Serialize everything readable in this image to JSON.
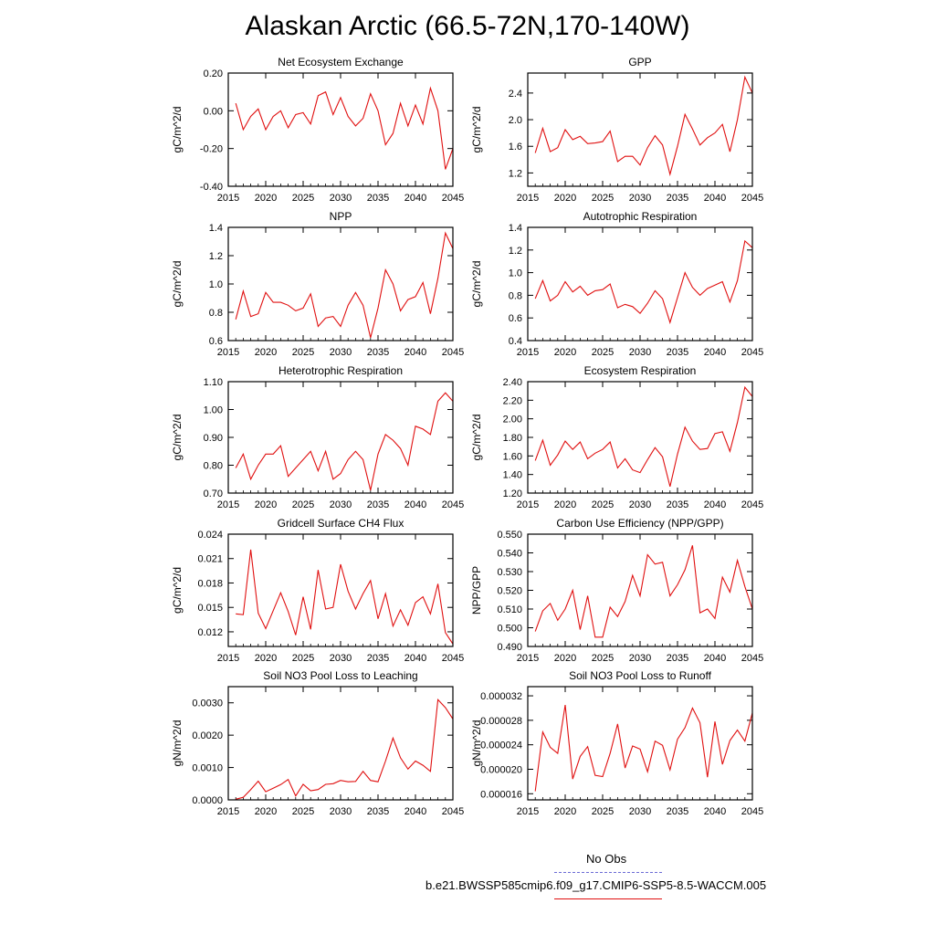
{
  "title": "Alaskan Arctic (66.5-72N,170-140W)",
  "legend": {
    "obs_label": "No Obs",
    "obs_color": "#6b6bd6",
    "model_label": "b.e21.BWSSP585cmip6.f09_g17.CMIP6-SSP5-8.5-WACCM.005",
    "model_color": "#e01010"
  },
  "chart_data": [
    {
      "type": "line",
      "title": "Net Ecosystem Exchange",
      "ylabel": "gC/m^2/d",
      "xlim": [
        2015,
        2045
      ],
      "ylim": [
        -0.4,
        0.2
      ],
      "xticks": [
        2015,
        2020,
        2025,
        2030,
        2035,
        2040,
        2045
      ],
      "yticks": [
        -0.4,
        -0.2,
        0.0,
        0.2
      ],
      "ytick_labels": [
        "-0.40",
        "-0.20",
        "0.00",
        "0.20"
      ],
      "x": [
        2016,
        2017,
        2018,
        2019,
        2020,
        2021,
        2022,
        2023,
        2024,
        2025,
        2026,
        2027,
        2028,
        2029,
        2030,
        2031,
        2032,
        2033,
        2034,
        2035,
        2036,
        2037,
        2038,
        2039,
        2040,
        2041,
        2042,
        2043,
        2044,
        2045
      ],
      "values": [
        0.04,
        -0.1,
        -0.03,
        0.01,
        -0.1,
        -0.03,
        0.0,
        -0.09,
        -0.02,
        -0.01,
        -0.07,
        0.08,
        0.1,
        -0.02,
        0.07,
        -0.03,
        -0.08,
        -0.04,
        0.09,
        0.0,
        -0.18,
        -0.12,
        0.04,
        -0.08,
        0.03,
        -0.07,
        0.12,
        0.0,
        -0.31,
        -0.2
      ]
    },
    {
      "type": "line",
      "title": "GPP",
      "ylabel": "gC/m^2/d",
      "xlim": [
        2015,
        2045
      ],
      "ylim": [
        1.0,
        2.7
      ],
      "xticks": [
        2015,
        2020,
        2025,
        2030,
        2035,
        2040,
        2045
      ],
      "yticks": [
        1.2,
        1.6,
        2.0,
        2.4
      ],
      "ytick_labels": [
        "1.2",
        "1.6",
        "2.0",
        "2.4"
      ],
      "x": [
        2016,
        2017,
        2018,
        2019,
        2020,
        2021,
        2022,
        2023,
        2024,
        2025,
        2026,
        2027,
        2028,
        2029,
        2030,
        2031,
        2032,
        2033,
        2034,
        2035,
        2036,
        2037,
        2038,
        2039,
        2040,
        2041,
        2042,
        2043,
        2044,
        2045
      ],
      "values": [
        1.5,
        1.87,
        1.52,
        1.58,
        1.85,
        1.7,
        1.75,
        1.64,
        1.65,
        1.67,
        1.83,
        1.37,
        1.45,
        1.45,
        1.32,
        1.58,
        1.76,
        1.62,
        1.18,
        1.6,
        2.08,
        1.86,
        1.62,
        1.73,
        1.8,
        1.93,
        1.52,
        2.0,
        2.64,
        2.4
      ]
    },
    {
      "type": "line",
      "title": "NPP",
      "ylabel": "gC/m^2/d",
      "xlim": [
        2015,
        2045
      ],
      "ylim": [
        0.6,
        1.4
      ],
      "xticks": [
        2015,
        2020,
        2025,
        2030,
        2035,
        2040,
        2045
      ],
      "yticks": [
        0.6,
        0.8,
        1.0,
        1.2,
        1.4
      ],
      "ytick_labels": [
        "0.6",
        "0.8",
        "1.0",
        "1.2",
        "1.4"
      ],
      "x": [
        2016,
        2017,
        2018,
        2019,
        2020,
        2021,
        2022,
        2023,
        2024,
        2025,
        2026,
        2027,
        2028,
        2029,
        2030,
        2031,
        2032,
        2033,
        2034,
        2035,
        2036,
        2037,
        2038,
        2039,
        2040,
        2041,
        2042,
        2043,
        2044,
        2045
      ],
      "values": [
        0.75,
        0.95,
        0.77,
        0.79,
        0.94,
        0.87,
        0.87,
        0.85,
        0.81,
        0.83,
        0.93,
        0.7,
        0.76,
        0.77,
        0.7,
        0.85,
        0.94,
        0.85,
        0.62,
        0.83,
        1.1,
        1.0,
        0.81,
        0.89,
        0.91,
        1.01,
        0.79,
        1.04,
        1.36,
        1.25
      ]
    },
    {
      "type": "line",
      "title": "Autotrophic Respiration",
      "ylabel": "gC/m^2/d",
      "xlim": [
        2015,
        2045
      ],
      "ylim": [
        0.4,
        1.4
      ],
      "xticks": [
        2015,
        2020,
        2025,
        2030,
        2035,
        2040,
        2045
      ],
      "yticks": [
        0.4,
        0.6,
        0.8,
        1.0,
        1.2,
        1.4
      ],
      "ytick_labels": [
        "0.4",
        "0.6",
        "0.8",
        "1.0",
        "1.2",
        "1.4"
      ],
      "x": [
        2016,
        2017,
        2018,
        2019,
        2020,
        2021,
        2022,
        2023,
        2024,
        2025,
        2026,
        2027,
        2028,
        2029,
        2030,
        2031,
        2032,
        2033,
        2034,
        2035,
        2036,
        2037,
        2038,
        2039,
        2040,
        2041,
        2042,
        2043,
        2044,
        2045
      ],
      "values": [
        0.77,
        0.93,
        0.75,
        0.8,
        0.92,
        0.83,
        0.88,
        0.8,
        0.84,
        0.85,
        0.9,
        0.69,
        0.72,
        0.7,
        0.64,
        0.73,
        0.84,
        0.77,
        0.56,
        0.78,
        1.0,
        0.87,
        0.8,
        0.86,
        0.89,
        0.92,
        0.74,
        0.93,
        1.28,
        1.22
      ]
    },
    {
      "type": "line",
      "title": "Heterotrophic Respiration",
      "ylabel": "gC/m^2/d",
      "xlim": [
        2015,
        2045
      ],
      "ylim": [
        0.7,
        1.1
      ],
      "xticks": [
        2015,
        2020,
        2025,
        2030,
        2035,
        2040,
        2045
      ],
      "yticks": [
        0.7,
        0.8,
        0.9,
        1.0,
        1.1
      ],
      "ytick_labels": [
        "0.70",
        "0.80",
        "0.90",
        "1.00",
        "1.10"
      ],
      "x": [
        2016,
        2017,
        2018,
        2019,
        2020,
        2021,
        2022,
        2023,
        2024,
        2025,
        2026,
        2027,
        2028,
        2029,
        2030,
        2031,
        2032,
        2033,
        2034,
        2035,
        2036,
        2037,
        2038,
        2039,
        2040,
        2041,
        2042,
        2043,
        2044,
        2045
      ],
      "values": [
        0.79,
        0.84,
        0.75,
        0.8,
        0.84,
        0.84,
        0.87,
        0.76,
        0.79,
        0.82,
        0.85,
        0.78,
        0.85,
        0.75,
        0.77,
        0.82,
        0.85,
        0.82,
        0.71,
        0.84,
        0.91,
        0.89,
        0.86,
        0.8,
        0.94,
        0.93,
        0.91,
        1.03,
        1.06,
        1.03
      ]
    },
    {
      "type": "line",
      "title": "Ecosystem Respiration",
      "ylabel": "gC/m^2/d",
      "xlim": [
        2015,
        2045
      ],
      "ylim": [
        1.2,
        2.4
      ],
      "xticks": [
        2015,
        2020,
        2025,
        2030,
        2035,
        2040,
        2045
      ],
      "yticks": [
        1.2,
        1.4,
        1.6,
        1.8,
        2.0,
        2.2,
        2.4
      ],
      "ytick_labels": [
        "1.20",
        "1.40",
        "1.60",
        "1.80",
        "2.00",
        "2.20",
        "2.40"
      ],
      "x": [
        2016,
        2017,
        2018,
        2019,
        2020,
        2021,
        2022,
        2023,
        2024,
        2025,
        2026,
        2027,
        2028,
        2029,
        2030,
        2031,
        2032,
        2033,
        2034,
        2035,
        2036,
        2037,
        2038,
        2039,
        2040,
        2041,
        2042,
        2043,
        2044,
        2045
      ],
      "values": [
        1.55,
        1.77,
        1.5,
        1.61,
        1.76,
        1.67,
        1.75,
        1.57,
        1.63,
        1.67,
        1.75,
        1.47,
        1.57,
        1.45,
        1.42,
        1.56,
        1.69,
        1.59,
        1.27,
        1.62,
        1.91,
        1.76,
        1.67,
        1.68,
        1.84,
        1.86,
        1.65,
        1.96,
        2.34,
        2.24
      ]
    },
    {
      "type": "line",
      "title": "Gridcell Surface CH4 Flux",
      "ylabel": "gC/m^2/d",
      "xlim": [
        2015,
        2045
      ],
      "ylim": [
        0.0102,
        0.024
      ],
      "xticks": [
        2015,
        2020,
        2025,
        2030,
        2035,
        2040,
        2045
      ],
      "yticks": [
        0.012,
        0.015,
        0.018,
        0.021,
        0.024
      ],
      "ytick_labels": [
        "0.012",
        "0.015",
        "0.018",
        "0.021",
        "0.024"
      ],
      "x": [
        2016,
        2017,
        2018,
        2019,
        2020,
        2021,
        2022,
        2023,
        2024,
        2025,
        2026,
        2027,
        2028,
        2029,
        2030,
        2031,
        2032,
        2033,
        2034,
        2035,
        2036,
        2037,
        2038,
        2039,
        2040,
        2041,
        2042,
        2043,
        2044,
        2045
      ],
      "values": [
        0.0142,
        0.0141,
        0.0221,
        0.0143,
        0.0124,
        0.0146,
        0.0168,
        0.0145,
        0.0116,
        0.0163,
        0.0123,
        0.0196,
        0.0148,
        0.015,
        0.0203,
        0.017,
        0.0148,
        0.0167,
        0.0183,
        0.0136,
        0.0167,
        0.0127,
        0.0147,
        0.0128,
        0.0156,
        0.0163,
        0.0142,
        0.0179,
        0.0119,
        0.0105
      ]
    },
    {
      "type": "line",
      "title": "Carbon Use Efficiency (NPP/GPP)",
      "ylabel": "NPP/GPP",
      "xlim": [
        2015,
        2045
      ],
      "ylim": [
        0.49,
        0.55
      ],
      "xticks": [
        2015,
        2020,
        2025,
        2030,
        2035,
        2040,
        2045
      ],
      "yticks": [
        0.49,
        0.5,
        0.51,
        0.52,
        0.53,
        0.54,
        0.55
      ],
      "ytick_labels": [
        "0.490",
        "0.500",
        "0.510",
        "0.520",
        "0.530",
        "0.540",
        "0.550"
      ],
      "x": [
        2016,
        2017,
        2018,
        2019,
        2020,
        2021,
        2022,
        2023,
        2024,
        2025,
        2026,
        2027,
        2028,
        2029,
        2030,
        2031,
        2032,
        2033,
        2034,
        2035,
        2036,
        2037,
        2038,
        2039,
        2040,
        2041,
        2042,
        2043,
        2044,
        2045
      ],
      "values": [
        0.498,
        0.509,
        0.513,
        0.504,
        0.51,
        0.52,
        0.499,
        0.517,
        0.495,
        0.495,
        0.511,
        0.506,
        0.514,
        0.528,
        0.517,
        0.539,
        0.534,
        0.535,
        0.517,
        0.523,
        0.531,
        0.544,
        0.508,
        0.51,
        0.505,
        0.527,
        0.519,
        0.536,
        0.522,
        0.51
      ]
    },
    {
      "type": "line",
      "title": "Soil NO3 Pool Loss to Leaching",
      "ylabel": "gN/m^2/d",
      "xlim": [
        2015,
        2045
      ],
      "ylim": [
        0.0,
        0.0035
      ],
      "xticks": [
        2015,
        2020,
        2025,
        2030,
        2035,
        2040,
        2045
      ],
      "yticks": [
        0.0,
        0.001,
        0.002,
        0.003
      ],
      "ytick_labels": [
        "0.0000",
        "0.0010",
        "0.0020",
        "0.0030"
      ],
      "x": [
        2016,
        2017,
        2018,
        2019,
        2020,
        2021,
        2022,
        2023,
        2024,
        2025,
        2026,
        2027,
        2028,
        2029,
        2030,
        2031,
        2032,
        2033,
        2034,
        2035,
        2036,
        2037,
        2038,
        2039,
        2040,
        2041,
        2042,
        2043,
        2044,
        2045
      ],
      "values": [
        2e-05,
        8e-05,
        0.00032,
        0.00058,
        0.00025,
        0.00036,
        0.00047,
        0.00063,
        0.00012,
        0.00048,
        0.00028,
        0.00032,
        0.00048,
        0.0005,
        0.0006,
        0.00056,
        0.00057,
        0.00088,
        0.0006,
        0.00056,
        0.0012,
        0.00191,
        0.0013,
        0.00095,
        0.0012,
        0.00107,
        0.00088,
        0.0031,
        0.00285,
        0.0025
      ]
    },
    {
      "type": "line",
      "title": "Soil NO3 Pool Loss to Runoff",
      "ylabel": "gN/m^2/d",
      "xlim": [
        2015,
        2045
      ],
      "ylim": [
        1.5e-05,
        3.35e-05
      ],
      "xticks": [
        2015,
        2020,
        2025,
        2030,
        2035,
        2040,
        2045
      ],
      "yticks": [
        1.6e-05,
        2e-05,
        2.4e-05,
        2.8e-05,
        3.2e-05
      ],
      "ytick_labels": [
        "0.000016",
        "0.000020",
        "0.000024",
        "0.000028",
        "0.000032"
      ],
      "x": [
        2016,
        2017,
        2018,
        2019,
        2020,
        2021,
        2022,
        2023,
        2024,
        2025,
        2026,
        2027,
        2028,
        2029,
        2030,
        2031,
        2032,
        2033,
        2034,
        2035,
        2036,
        2037,
        2038,
        2039,
        2040,
        2041,
        2042,
        2043,
        2044,
        2045
      ],
      "values": [
        1.64e-05,
        2.61e-05,
        2.36e-05,
        2.26e-05,
        3.05e-05,
        1.84e-05,
        2.21e-05,
        2.37e-05,
        1.9e-05,
        1.88e-05,
        2.26e-05,
        2.74e-05,
        2.02e-05,
        2.38e-05,
        2.33e-05,
        1.96e-05,
        2.46e-05,
        2.39e-05,
        1.99e-05,
        2.49e-05,
        2.68e-05,
        3e-05,
        2.76e-05,
        1.87e-05,
        2.78e-05,
        2.08e-05,
        2.47e-05,
        2.64e-05,
        2.46e-05,
        2.92e-05
      ]
    }
  ]
}
